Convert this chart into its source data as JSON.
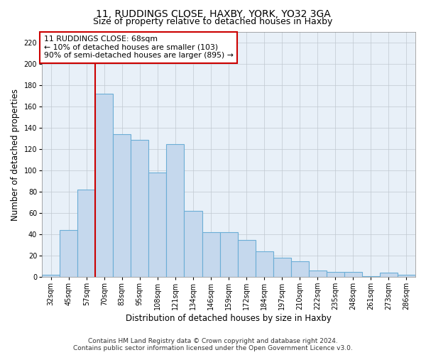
{
  "title1": "11, RUDDINGS CLOSE, HAXBY, YORK, YO32 3GA",
  "title2": "Size of property relative to detached houses in Haxby",
  "xlabel": "Distribution of detached houses by size in Haxby",
  "ylabel": "Number of detached properties",
  "categories": [
    "32sqm",
    "45sqm",
    "57sqm",
    "70sqm",
    "83sqm",
    "95sqm",
    "108sqm",
    "121sqm",
    "134sqm",
    "146sqm",
    "159sqm",
    "172sqm",
    "184sqm",
    "197sqm",
    "210sqm",
    "222sqm",
    "235sqm",
    "248sqm",
    "261sqm",
    "273sqm",
    "286sqm"
  ],
  "values": [
    2,
    44,
    82,
    172,
    134,
    129,
    98,
    125,
    62,
    42,
    42,
    35,
    24,
    18,
    15,
    6,
    5,
    5,
    1,
    4,
    2
  ],
  "bar_color": "#c5d8ed",
  "bar_edge_color": "#6baed6",
  "vline_color": "#cc0000",
  "annotation_text": "11 RUDDINGS CLOSE: 68sqm\n← 10% of detached houses are smaller (103)\n90% of semi-detached houses are larger (895) →",
  "annotation_box_color": "#ffffff",
  "annotation_box_edge_color": "#cc0000",
  "ylim": [
    0,
    230
  ],
  "yticks": [
    0,
    20,
    40,
    60,
    80,
    100,
    120,
    140,
    160,
    180,
    200,
    220
  ],
  "footer_line1": "Contains HM Land Registry data © Crown copyright and database right 2024.",
  "footer_line2": "Contains public sector information licensed under the Open Government Licence v3.0.",
  "bg_color": "#ffffff",
  "plot_bg_color": "#e8f0f8",
  "grid_color": "#c0c8d0",
  "title1_fontsize": 10,
  "title2_fontsize": 9,
  "annotation_fontsize": 7.8,
  "tick_fontsize": 7,
  "xlabel_fontsize": 8.5,
  "ylabel_fontsize": 8.5,
  "footer_fontsize": 6.5
}
